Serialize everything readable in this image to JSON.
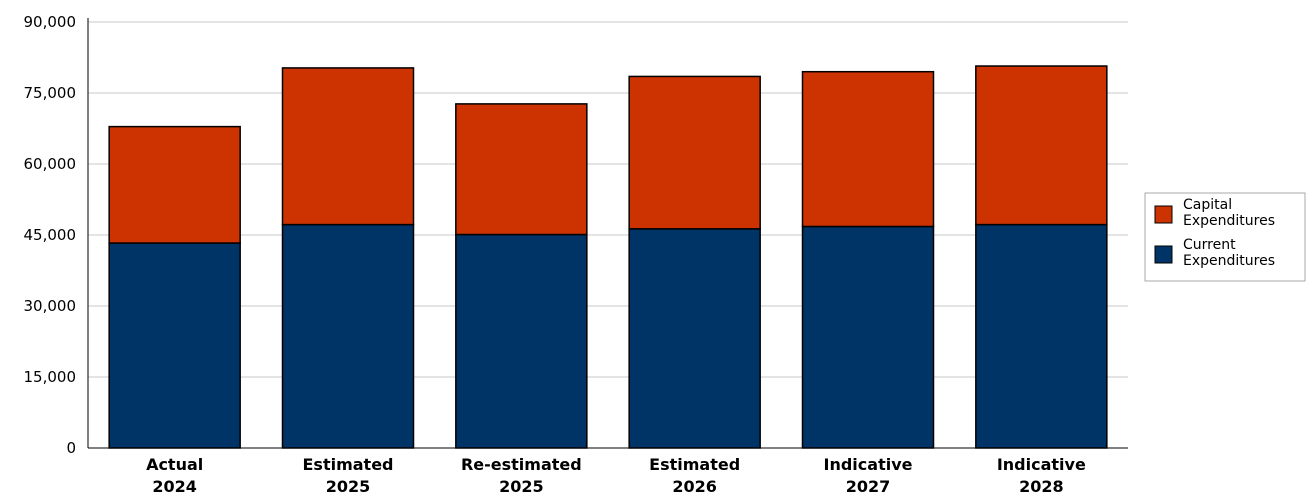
{
  "chart_data": {
    "type": "bar",
    "stacked": true,
    "categories": [
      [
        "Actual",
        "2024"
      ],
      [
        "Estimated",
        "2025"
      ],
      [
        "Re-estimated",
        "2025"
      ],
      [
        "Estimated",
        "2026"
      ],
      [
        "Indicative",
        "2027"
      ],
      [
        "Indicative",
        "2028"
      ]
    ],
    "series": [
      {
        "name": "Current Expenditures",
        "legend_lines": [
          "Current",
          "Expenditures"
        ],
        "color": "#003366",
        "values": [
          43300,
          47200,
          45100,
          46300,
          46800,
          47200
        ]
      },
      {
        "name": "Capital Expenditures",
        "legend_lines": [
          "Capital",
          "Expenditures"
        ],
        "color": "#cc3300",
        "values": [
          24600,
          33100,
          27600,
          32200,
          32700,
          33500
        ]
      }
    ],
    "title": "",
    "xlabel": "",
    "ylabel": "",
    "ylim": [
      0,
      90000
    ],
    "yticks": [
      0,
      15000,
      30000,
      45000,
      60000,
      75000,
      90000
    ],
    "ytick_labels": [
      "0",
      "15,000",
      "30,000",
      "45,000",
      "60,000",
      "75,000",
      "90,000"
    ],
    "grid": true,
    "legend_position": "right",
    "legend_order": [
      "Capital Expenditures",
      "Current Expenditures"
    ]
  }
}
